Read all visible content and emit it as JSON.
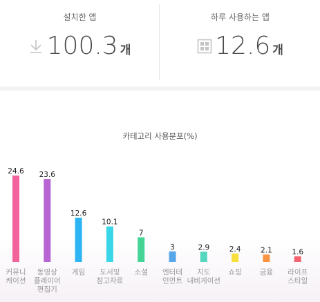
{
  "installed": {
    "label": "설치한 앱",
    "value": "100.3",
    "unit": "개",
    "icon": "download-arrow-icon"
  },
  "daily": {
    "label": "하루 사용하는 앱",
    "value": "12.6",
    "unit": "개",
    "icon": "app-grid-icon"
  },
  "chart_data": {
    "type": "bar",
    "title": "카테고리 사용분포(%)",
    "categories": [
      [
        "커뮤니",
        "케이션"
      ],
      [
        "동영상",
        "플레이어",
        "편집기"
      ],
      [
        "게임"
      ],
      [
        "도서및",
        "참고자료"
      ],
      [
        "소셜"
      ],
      [
        "엔터테",
        "인먼트"
      ],
      [
        "지도",
        "내비게이션"
      ],
      [
        "쇼핑"
      ],
      [
        "금융"
      ],
      [
        "라이프",
        "스타일"
      ]
    ],
    "values": [
      24.6,
      23.6,
      12.6,
      10.1,
      7,
      3,
      2.9,
      2.4,
      2.1,
      1.6
    ],
    "value_labels": [
      "24.6",
      "23.6",
      "12.6",
      "10.1",
      "7",
      "3",
      "2.9",
      "2.4",
      "2.1",
      "1.6"
    ],
    "colors": [
      "#f2639b",
      "#b765d4",
      "#2db4f2",
      "#38d6e6",
      "#43d496",
      "#57a6ea",
      "#54d6bf",
      "#f7df3c",
      "#f99445",
      "#f2636f"
    ]
  }
}
